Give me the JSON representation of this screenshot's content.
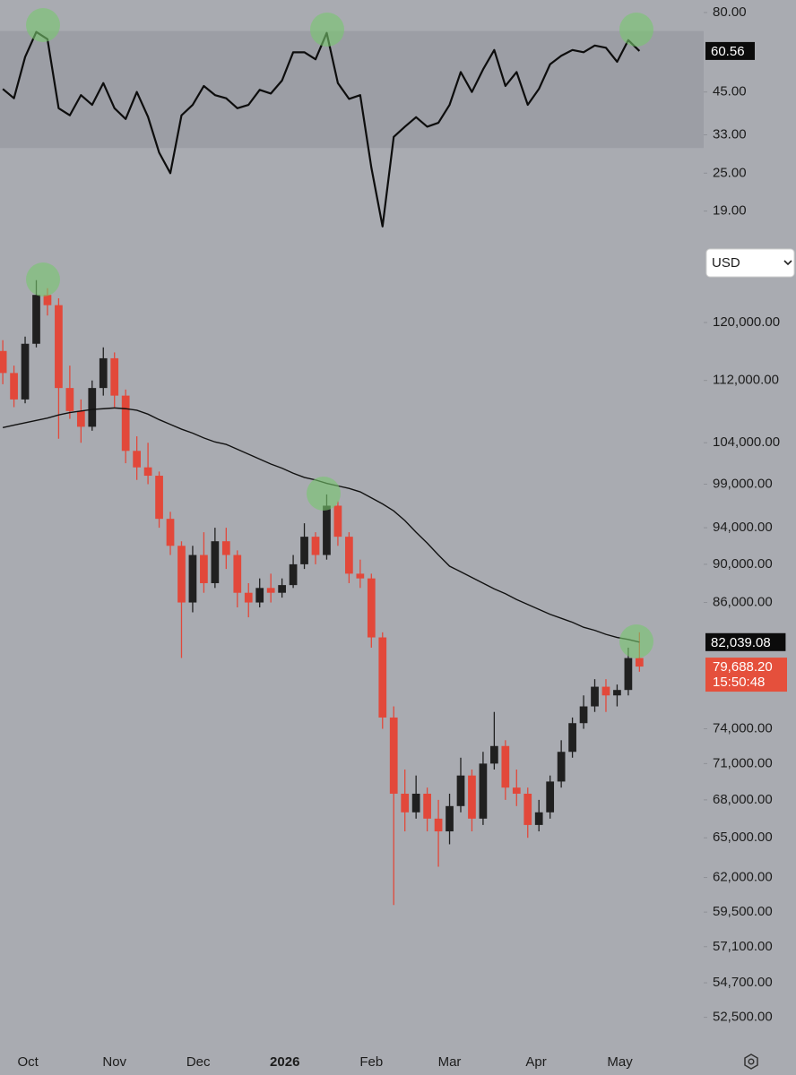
{
  "currency_selector": "USD",
  "chart_data": [
    {
      "type": "line",
      "x": [
        1,
        5,
        9,
        13,
        17,
        21,
        25,
        29,
        33,
        37,
        41,
        45,
        49,
        53,
        57,
        61,
        65,
        69,
        73,
        77,
        81,
        85,
        89,
        93,
        97,
        101,
        105,
        109,
        113,
        117,
        121,
        125,
        129,
        133,
        137,
        141,
        145,
        149,
        153,
        157,
        161,
        165,
        169,
        173,
        177,
        181,
        185,
        189,
        193,
        197,
        201,
        205,
        209,
        213,
        217,
        221,
        225,
        229
      ],
      "xlim": [
        0,
        252
      ],
      "ylim": [
        15.7,
        87.6
      ],
      "log_scale": true,
      "band": [
        30,
        70
      ],
      "band_color": "#9c9ea5",
      "yticks": [
        {
          "value": 80,
          "label": "80.00"
        },
        {
          "value": 45,
          "label": "45.00"
        },
        {
          "value": 33,
          "label": "33.00"
        },
        {
          "value": 25,
          "label": "25.00"
        },
        {
          "value": 19,
          "label": "19.00"
        }
      ],
      "series": [
        {
          "color": "#0d0d0d",
          "values": [
            46,
            43,
            58,
            69.5,
            66,
            40,
            38,
            44,
            41,
            48,
            40,
            37,
            45,
            37.6,
            29,
            25,
            38,
            41,
            47,
            44,
            43,
            40,
            41,
            45.7,
            44.5,
            48.9,
            60,
            60,
            57,
            69,
            48,
            42.8,
            44,
            26,
            17,
            32.5,
            35,
            37.5,
            35,
            36,
            41,
            52,
            45,
            53,
            61,
            47,
            52,
            41,
            46,
            55,
            58.5,
            61,
            60,
            63,
            62,
            56,
            65.5,
            60.56
          ]
        }
      ]
    },
    {
      "type": "candlestick",
      "x": [
        1,
        5,
        9,
        13,
        17,
        21,
        25,
        29,
        33,
        37,
        41,
        45,
        49,
        53,
        57,
        61,
        65,
        69,
        73,
        77,
        81,
        85,
        89,
        93,
        97,
        101,
        105,
        109,
        113,
        117,
        121,
        125,
        129,
        133,
        137,
        141,
        145,
        149,
        153,
        157,
        161,
        165,
        169,
        173,
        177,
        181,
        185,
        189,
        193,
        197,
        201,
        205,
        209,
        213,
        217,
        221,
        225,
        229
      ],
      "xlim": [
        0,
        252
      ],
      "xticks": [
        {
          "value": 10,
          "label": "Oct"
        },
        {
          "value": 41,
          "label": "Nov"
        },
        {
          "value": 71,
          "label": "Dec"
        },
        {
          "value": 102,
          "label": "2026",
          "bold": true
        },
        {
          "value": 133,
          "label": "Feb"
        },
        {
          "value": 161,
          "label": "Mar"
        },
        {
          "value": 192,
          "label": "Apr"
        },
        {
          "value": 222,
          "label": "May"
        }
      ],
      "ylim": [
        50880,
        132080
      ],
      "log_scale": true,
      "yticks": [
        {
          "value": 120000,
          "label": "120,000.00"
        },
        {
          "value": 112000,
          "label": "112,000.00"
        },
        {
          "value": 104000,
          "label": "104,000.00"
        },
        {
          "value": 99000,
          "label": "99,000.00"
        },
        {
          "value": 94000,
          "label": "94,000.00"
        },
        {
          "value": 90000,
          "label": "90,000.00"
        },
        {
          "value": 86000,
          "label": "86,000.00"
        },
        {
          "value": 74000,
          "label": "74,000.00"
        },
        {
          "value": 71000,
          "label": "71,000.00"
        },
        {
          "value": 68000,
          "label": "68,000.00"
        },
        {
          "value": 65000,
          "label": "65,000.00"
        },
        {
          "value": 62000,
          "label": "62,000.00"
        },
        {
          "value": 59500,
          "label": "59,500.00"
        },
        {
          "value": 57100,
          "label": "57,100.00"
        },
        {
          "value": 54700,
          "label": "54,700.00"
        },
        {
          "value": 52500,
          "label": "52,500.00"
        }
      ],
      "candles": {
        "up_color": "#202020",
        "down_color": "#e2483a",
        "open": [
          116000,
          113000,
          109500,
          117000,
          124000,
          122500,
          111000,
          108000,
          106000,
          111000,
          115000,
          110000,
          103000,
          101000,
          100000,
          95000,
          92000,
          86000,
          91000,
          88000,
          92500,
          91000,
          87000,
          86000,
          87500,
          87000,
          87800,
          90000,
          93000,
          91000,
          96500,
          93000,
          89000,
          88500,
          82500,
          75000,
          68500,
          67000,
          68500,
          66500,
          65500,
          67500,
          70000,
          66500,
          71000,
          72500,
          69000,
          68500,
          66000,
          67000,
          69500,
          72000,
          74500,
          76000,
          77800,
          77000,
          77500,
          80500
        ],
        "high": [
          117500,
          114000,
          118000,
          126200,
          125000,
          123500,
          114000,
          109500,
          112000,
          116500,
          115800,
          110800,
          104800,
          104000,
          100500,
          95800,
          92500,
          92000,
          93500,
          94000,
          94000,
          91500,
          88000,
          88500,
          89000,
          88500,
          91000,
          94500,
          93500,
          97800,
          97000,
          93500,
          90500,
          89000,
          83000,
          76000,
          70500,
          70000,
          69000,
          68000,
          68500,
          71500,
          70500,
          72000,
          75500,
          73000,
          70500,
          69000,
          68000,
          70000,
          73000,
          75000,
          77000,
          78500,
          78500,
          78000,
          81500,
          83000
        ],
        "low": [
          111500,
          108500,
          109000,
          116500,
          121000,
          104500,
          107000,
          104000,
          105500,
          110000,
          108500,
          101500,
          99500,
          99000,
          94000,
          91000,
          80500,
          85000,
          87000,
          87500,
          89500,
          85500,
          84500,
          85500,
          86000,
          86500,
          87500,
          89500,
          90000,
          90500,
          92000,
          88000,
          87500,
          81500,
          74000,
          60000,
          65500,
          66500,
          65500,
          62800,
          64500,
          67000,
          65500,
          66000,
          70500,
          68000,
          67500,
          65000,
          65500,
          66500,
          69000,
          71500,
          74000,
          75500,
          75500,
          76000,
          77000,
          79200
        ],
        "close": [
          113000,
          109500,
          117000,
          124000,
          122500,
          111000,
          108000,
          106000,
          111000,
          115000,
          110000,
          103000,
          101000,
          100000,
          95000,
          92000,
          86000,
          91000,
          88000,
          92500,
          91000,
          87000,
          86000,
          87500,
          87000,
          87800,
          90000,
          93000,
          91000,
          96500,
          93000,
          89000,
          88500,
          82500,
          75000,
          68500,
          67000,
          68500,
          66500,
          65500,
          67500,
          70000,
          66500,
          71000,
          72500,
          69000,
          68500,
          66000,
          67000,
          69500,
          72000,
          74500,
          76000,
          77800,
          77000,
          77500,
          80500,
          79688.2
        ],
        "value_labels": [
          null,
          null,
          null,
          null,
          null,
          null,
          null,
          null,
          null,
          null,
          null,
          null,
          null,
          null,
          null,
          null,
          null,
          null,
          null,
          null,
          null,
          null,
          null,
          null,
          null,
          null,
          null,
          null,
          null,
          null,
          null,
          null,
          null,
          null,
          null,
          null,
          null,
          null,
          null,
          null,
          null,
          null,
          null,
          null,
          null,
          null,
          null,
          null,
          null,
          null,
          null,
          null,
          null,
          null,
          null,
          null,
          null,
          "79,688.20"
        ],
        "label_color": "#e5503c"
      },
      "countdown": "15:50:48",
      "moving_average": {
        "color": "#111111",
        "values": [
          105900,
          106200,
          106500,
          106800,
          107100,
          107500,
          107800,
          108000,
          108200,
          108300,
          108400,
          108300,
          108100,
          107600,
          106900,
          106300,
          105700,
          105200,
          104600,
          104100,
          103800,
          103200,
          102600,
          102000,
          101400,
          100900,
          100300,
          99800,
          99500,
          99100,
          98800,
          98500,
          98100,
          97400,
          96700,
          95900,
          94800,
          93500,
          92300,
          91000,
          89800,
          89200,
          88600,
          88000,
          87400,
          86900,
          86300,
          85800,
          85300,
          84800,
          84400,
          84000,
          83500,
          83200,
          82800,
          82500,
          82300,
          82039.08
        ],
        "value_labels": [
          null,
          null,
          null,
          null,
          null,
          null,
          null,
          null,
          null,
          null,
          null,
          null,
          null,
          null,
          null,
          null,
          null,
          null,
          null,
          null,
          null,
          null,
          null,
          null,
          null,
          null,
          null,
          null,
          null,
          null,
          null,
          null,
          null,
          null,
          null,
          null,
          null,
          null,
          null,
          null,
          null,
          null,
          null,
          null,
          null,
          null,
          null,
          null,
          null,
          null,
          null,
          null,
          null,
          null,
          null,
          null,
          null,
          "82,039.08"
        ]
      }
    }
  ]
}
